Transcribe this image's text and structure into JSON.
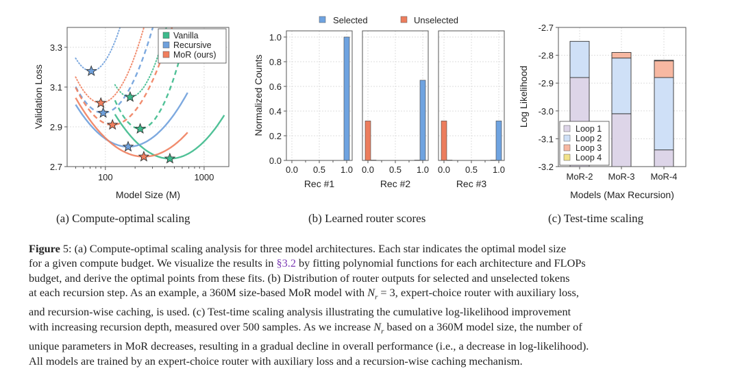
{
  "figure": {
    "subcaptions": [
      "(a) Compute-optimal scaling",
      "(b) Learned router scores",
      "(c) Test-time scaling"
    ],
    "caption_lines": [
      {
        "prefix_bold": "Figure",
        "text": " 5: (a) Compute-optimal scaling analysis for three model architectures. Each star indicates the optimal model size"
      },
      {
        "pre": "for a given compute budget. We visualize the results in ",
        "ref": "§3.2",
        "post": " by fitting polynomial functions for each architecture and FLOPs"
      },
      {
        "text": "budget, and derive the optimal points from these fits. (b) Distribution of router outputs for selected and unselected tokens"
      },
      {
        "pre": "at each recursion step. As an example, a 360M size-based MoR model with ",
        "math": "N",
        "sub": "r",
        "post": " = 3, expert-choice router with auxiliary loss,"
      },
      {
        "text": "and recursion-wise caching, is used. (c) Test-time scaling analysis illustrating the cumulative log-likelihood improvement"
      },
      {
        "pre": "with increasing recursion depth, measured over 500 samples. As we increase ",
        "math": "N",
        "sub": "r",
        "post": " based on a 360M model size, the number of"
      },
      {
        "text": "unique parameters in MoR decreases, resulting in a gradual decline in overall performance (i.e., a decrease in log-likelihood)."
      },
      {
        "text": "All models are trained by an expert-choice router with auxiliary loss and a recursion-wise caching mechanism."
      }
    ]
  },
  "colors": {
    "vanilla": "#3dba8c",
    "recursive": "#6fa0db",
    "mor": "#f07f5e",
    "loop1": "#ddd5e8",
    "loop2": "#cfe0f7",
    "loop3": "#f7b8a2",
    "loop4": "#f2e28a",
    "selected": "#6fa3e0",
    "unselected": "#ec7d5d"
  },
  "chart_data": [
    {
      "type": "line",
      "title": "",
      "xlabel": "Model Size (M)",
      "ylabel": "Validation Loss",
      "xscale": "log",
      "xlim": [
        41,
        1780
      ],
      "ylim": [
        2.7,
        3.4
      ],
      "xticks": [
        100,
        1000
      ],
      "xtick_labels": [
        "100",
        "1000"
      ],
      "yticks": [
        2.7,
        2.9,
        3.1,
        3.3
      ],
      "ytick_labels": [
        "2.7",
        "2.9",
        "3.1",
        "3.3"
      ],
      "grid": true,
      "legend": {
        "placement": "top-right",
        "entries": [
          "Vanilla",
          "Recursive",
          "MoR (ours)"
        ]
      },
      "line_styles_note": "dotted, dashed, solid = three compute budgets (low to high)",
      "series": [
        {
          "name": "Vanilla",
          "color_key": "vanilla",
          "style": "dotted",
          "optimum": [
            178,
            3.05
          ],
          "x_range": [
            125,
            900
          ],
          "curvature": 2.6
        },
        {
          "name": "Vanilla",
          "color_key": "vanilla",
          "style": "dashed",
          "optimum": [
            225,
            2.89
          ],
          "x_range": [
            125,
            900
          ],
          "curvature": 2.2
        },
        {
          "name": "Vanilla",
          "color_key": "vanilla",
          "style": "solid",
          "optimum": [
            450,
            2.74
          ],
          "x_range": [
            125,
            1600
          ],
          "curvature": 0.72
        },
        {
          "name": "Recursive",
          "color_key": "recursive",
          "style": "dotted",
          "optimum": [
            72,
            3.18
          ],
          "x_range": [
            50,
            200
          ],
          "curvature": 2.6
        },
        {
          "name": "Recursive",
          "color_key": "recursive",
          "style": "dashed",
          "optimum": [
            95,
            2.97
          ],
          "x_range": [
            50,
            500
          ],
          "curvature": 1.7
        },
        {
          "name": "Recursive",
          "color_key": "recursive",
          "style": "solid",
          "optimum": [
            170,
            2.8
          ],
          "x_range": [
            50,
            680
          ],
          "curvature": 0.75
        },
        {
          "name": "MoR (ours)",
          "color_key": "mor",
          "style": "dotted",
          "optimum": [
            90,
            3.02
          ],
          "x_range": [
            50,
            400
          ],
          "curvature": 2.0
        },
        {
          "name": "MoR (ours)",
          "color_key": "mor",
          "style": "dashed",
          "optimum": [
            118,
            2.91
          ],
          "x_range": [
            50,
            700
          ],
          "curvature": 1.35
        },
        {
          "name": "MoR (ours)",
          "color_key": "mor",
          "style": "solid",
          "optimum": [
            245,
            2.75
          ],
          "x_range": [
            50,
            680
          ],
          "curvature": 0.62
        }
      ]
    },
    {
      "type": "bar",
      "title": "",
      "ylabel": "Normalized Counts",
      "ylim": [
        0,
        1.05
      ],
      "yticks": [
        0.0,
        0.2,
        0.4,
        0.6,
        0.8,
        1.0
      ],
      "ytick_labels": [
        "0.0",
        "0.2",
        "0.4",
        "0.6",
        "0.8",
        "1.0"
      ],
      "xlim": [
        -0.1,
        1.1
      ],
      "xticks": [
        0.0,
        0.5,
        1.0
      ],
      "xtick_labels": [
        "0.0",
        "0.5",
        "1.0"
      ],
      "grid": true,
      "legend": {
        "placement": "top-center",
        "entries": [
          "Selected",
          "Unselected"
        ]
      },
      "bin_width": 0.1,
      "panels": [
        {
          "xlabel": "Rec #1",
          "selected": [
            [
              1.0,
              1.0
            ]
          ],
          "unselected": []
        },
        {
          "xlabel": "Rec #2",
          "selected": [
            [
              1.0,
              0.65
            ],
            [
              0.9,
              0.003
            ]
          ],
          "unselected": [
            [
              0.0,
              0.32
            ],
            [
              0.1,
              0.003
            ]
          ]
        },
        {
          "xlabel": "Rec #3",
          "selected": [
            [
              1.0,
              0.32
            ],
            [
              0.9,
              0.003
            ]
          ],
          "unselected": [
            [
              0.0,
              0.32
            ],
            [
              0.1,
              0.003
            ]
          ]
        }
      ]
    },
    {
      "type": "bar",
      "stacked": true,
      "title": "",
      "xlabel": "Models (Max Recursion)",
      "ylabel": "Log Likelihood",
      "ylim": [
        -3.2,
        -2.7
      ],
      "yticks": [
        -3.2,
        -3.1,
        -3.0,
        -2.9,
        -2.8,
        -2.7
      ],
      "ytick_labels": [
        "-3.2",
        "-3.1",
        "-3.0",
        "-2.9",
        "-2.8",
        "-2.7"
      ],
      "categories": [
        "MoR-2",
        "MoR-3",
        "MoR-4"
      ],
      "grid": true,
      "legend": {
        "placement": "bottom-left",
        "entries": [
          "Loop 1",
          "Loop 2",
          "Loop 3",
          "Loop 4"
        ]
      },
      "series": [
        {
          "name": "Loop 1",
          "color_key": "loop1",
          "cumulative_top": [
            -2.88,
            -3.01,
            -3.14
          ]
        },
        {
          "name": "Loop 2",
          "color_key": "loop2",
          "cumulative_top": [
            -2.75,
            -2.81,
            -2.88
          ]
        },
        {
          "name": "Loop 3",
          "color_key": "loop3",
          "cumulative_top": [
            null,
            -2.79,
            -2.82
          ]
        },
        {
          "name": "Loop 4",
          "color_key": "loop4",
          "cumulative_top": [
            null,
            null,
            -2.818
          ]
        }
      ]
    }
  ]
}
